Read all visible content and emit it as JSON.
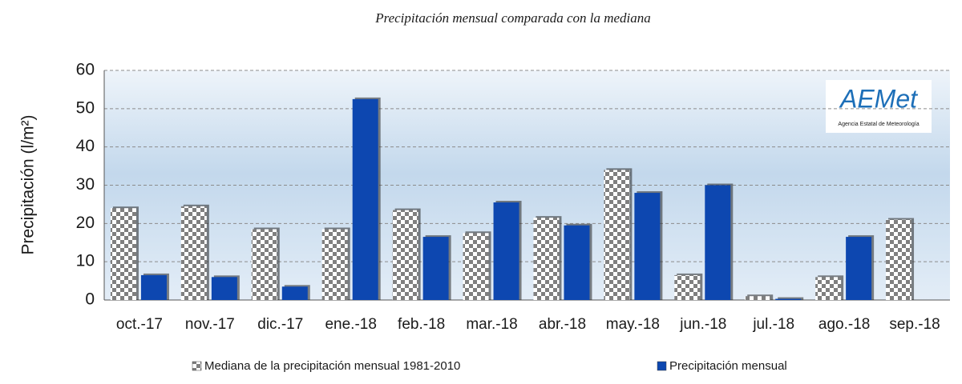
{
  "chart_data": {
    "type": "bar",
    "title": "Precipitación mensual comparada con la mediana",
    "y_label": "Precipitación (l/m²)",
    "logo_text": "AEMet",
    "logo_subtext": "Agencia Estatal de Meteorología",
    "categories": [
      "oct.-17",
      "nov.-17",
      "dic.-17",
      "ene.-18",
      "feb.-18",
      "mar.-18",
      "abr.-18",
      "may.-18",
      "jun.-18",
      "jul.-18",
      "ago.-18",
      "sep.-18"
    ],
    "series": [
      {
        "name": "Mediana de la precipitación mensual  1981-2010",
        "color": "#7f7f7f",
        "pattern": "checkerboard",
        "values": [
          24,
          24.5,
          18.5,
          18.5,
          23.5,
          17.5,
          21.5,
          34,
          6.5,
          1,
          6,
          21
        ]
      },
      {
        "name": "Precipitación mensual",
        "color": "#0d47b0",
        "values": [
          6.5,
          6,
          3.5,
          52.5,
          16.5,
          25.5,
          19.5,
          28,
          30,
          0.3,
          16.5,
          null
        ]
      }
    ],
    "ylim": [
      0,
      60
    ],
    "yticks": [
      0,
      10,
      20,
      30,
      40,
      50,
      60
    ],
    "grid": true,
    "legend": "bottom"
  }
}
